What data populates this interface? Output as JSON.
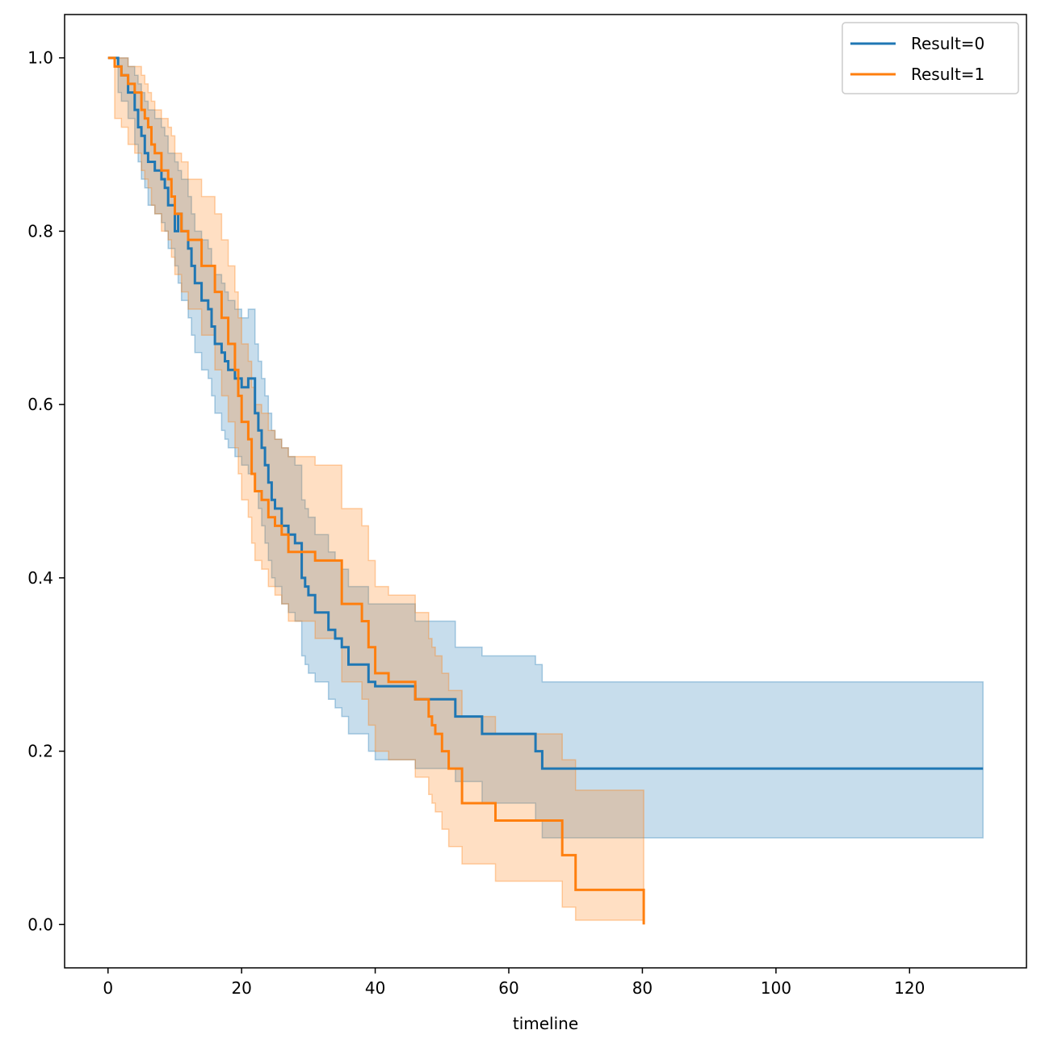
{
  "chart_data": {
    "type": "line",
    "subtype": "kaplan-meier survival curve with confidence bands",
    "title": "",
    "xlabel": "timeline",
    "ylabel": "",
    "xlim": [
      -6.5,
      137.5
    ],
    "ylim": [
      -0.05,
      1.05
    ],
    "x_ticks": [
      0,
      20,
      40,
      60,
      80,
      100,
      120
    ],
    "y_ticks": [
      0.0,
      0.2,
      0.4,
      0.6,
      0.8,
      1.0
    ],
    "x_tick_labels": [
      "0",
      "20",
      "40",
      "60",
      "80",
      "100",
      "120"
    ],
    "y_tick_labels": [
      "0.0",
      "0.2",
      "0.4",
      "0.6",
      "0.8",
      "1.0"
    ],
    "grid": false,
    "legend_position": "top-right",
    "series": [
      {
        "name": "Result=0",
        "color": "#1f77b4",
        "band_color": "#1f77b4",
        "x": [
          0,
          1.5,
          2,
          3,
          4,
          4.5,
          5,
          5.5,
          6,
          7,
          8,
          8.5,
          9,
          10,
          10.5,
          11,
          12,
          12.5,
          13,
          14,
          15,
          15.5,
          16,
          17,
          17.5,
          18,
          19,
          20,
          21,
          22,
          22.5,
          23,
          23.5,
          24,
          24.5,
          25,
          26,
          27,
          28,
          29,
          29.5,
          30,
          31,
          33,
          34,
          35,
          36,
          39,
          40,
          46,
          52,
          56,
          64,
          65,
          131
        ],
        "y": [
          1.0,
          0.99,
          0.98,
          0.96,
          0.94,
          0.92,
          0.91,
          0.89,
          0.88,
          0.87,
          0.86,
          0.85,
          0.83,
          0.8,
          0.82,
          0.8,
          0.78,
          0.76,
          0.74,
          0.72,
          0.71,
          0.69,
          0.67,
          0.66,
          0.65,
          0.64,
          0.63,
          0.62,
          0.63,
          0.59,
          0.57,
          0.55,
          0.53,
          0.51,
          0.49,
          0.48,
          0.46,
          0.45,
          0.44,
          0.4,
          0.39,
          0.38,
          0.36,
          0.34,
          0.33,
          0.32,
          0.3,
          0.28,
          0.275,
          0.26,
          0.24,
          0.22,
          0.2,
          0.18,
          0.18
        ],
        "ci_lower": [
          1.0,
          0.96,
          0.95,
          0.93,
          0.9,
          0.88,
          0.86,
          0.85,
          0.83,
          0.82,
          0.81,
          0.8,
          0.78,
          0.76,
          0.74,
          0.72,
          0.7,
          0.68,
          0.66,
          0.64,
          0.63,
          0.61,
          0.59,
          0.57,
          0.56,
          0.55,
          0.54,
          0.53,
          0.52,
          0.5,
          0.48,
          0.46,
          0.44,
          0.42,
          0.4,
          0.39,
          0.37,
          0.36,
          0.35,
          0.31,
          0.3,
          0.29,
          0.28,
          0.26,
          0.25,
          0.24,
          0.22,
          0.2,
          0.19,
          0.18,
          0.165,
          0.14,
          0.12,
          0.1,
          0.1
        ],
        "ci_upper": [
          1.0,
          1.0,
          1.0,
          0.99,
          0.98,
          0.97,
          0.96,
          0.95,
          0.94,
          0.93,
          0.92,
          0.91,
          0.89,
          0.88,
          0.87,
          0.86,
          0.84,
          0.82,
          0.8,
          0.79,
          0.78,
          0.76,
          0.75,
          0.74,
          0.73,
          0.72,
          0.71,
          0.7,
          0.71,
          0.67,
          0.65,
          0.63,
          0.61,
          0.59,
          0.57,
          0.56,
          0.55,
          0.54,
          0.53,
          0.49,
          0.48,
          0.47,
          0.45,
          0.43,
          0.42,
          0.41,
          0.39,
          0.37,
          0.37,
          0.35,
          0.32,
          0.31,
          0.3,
          0.28,
          0.28
        ]
      },
      {
        "name": "Result=1",
        "color": "#ff7f0e",
        "band_color": "#ff7f0e",
        "x": [
          0,
          1,
          2,
          3,
          4,
          5,
          5.5,
          6,
          6.5,
          7,
          8,
          9,
          9.5,
          10,
          11,
          12,
          14,
          16,
          17,
          18,
          19,
          19.5,
          20,
          21,
          21.5,
          22,
          23,
          24,
          25,
          26,
          27,
          30,
          31,
          35,
          38,
          39,
          40,
          42,
          46,
          48,
          48.5,
          49,
          50,
          51,
          53,
          58,
          68,
          70,
          80,
          80.2
        ],
        "y": [
          1.0,
          0.99,
          0.98,
          0.97,
          0.96,
          0.94,
          0.93,
          0.92,
          0.9,
          0.89,
          0.87,
          0.86,
          0.84,
          0.82,
          0.8,
          0.79,
          0.76,
          0.73,
          0.7,
          0.67,
          0.64,
          0.61,
          0.58,
          0.56,
          0.52,
          0.5,
          0.49,
          0.47,
          0.46,
          0.45,
          0.43,
          0.43,
          0.42,
          0.37,
          0.35,
          0.32,
          0.29,
          0.28,
          0.26,
          0.24,
          0.23,
          0.22,
          0.2,
          0.18,
          0.14,
          0.12,
          0.08,
          0.04,
          0.04,
          0.0
        ],
        "ci_lower": [
          1.0,
          0.93,
          0.92,
          0.9,
          0.89,
          0.87,
          0.86,
          0.85,
          0.83,
          0.82,
          0.8,
          0.79,
          0.77,
          0.75,
          0.73,
          0.71,
          0.68,
          0.64,
          0.61,
          0.58,
          0.55,
          0.52,
          0.49,
          0.47,
          0.44,
          0.42,
          0.41,
          0.39,
          0.38,
          0.37,
          0.35,
          0.35,
          0.33,
          0.28,
          0.26,
          0.23,
          0.2,
          0.19,
          0.17,
          0.15,
          0.14,
          0.13,
          0.11,
          0.09,
          0.07,
          0.05,
          0.02,
          0.005,
          0.005,
          0.0
        ],
        "ci_upper": [
          1.0,
          1.0,
          1.0,
          0.99,
          0.99,
          0.98,
          0.97,
          0.96,
          0.95,
          0.94,
          0.93,
          0.92,
          0.91,
          0.89,
          0.88,
          0.86,
          0.84,
          0.82,
          0.79,
          0.76,
          0.73,
          0.7,
          0.67,
          0.65,
          0.62,
          0.6,
          0.59,
          0.57,
          0.56,
          0.55,
          0.54,
          0.54,
          0.53,
          0.48,
          0.46,
          0.42,
          0.39,
          0.38,
          0.36,
          0.33,
          0.32,
          0.31,
          0.29,
          0.27,
          0.24,
          0.22,
          0.19,
          0.155,
          0.155,
          0.155
        ]
      }
    ]
  }
}
